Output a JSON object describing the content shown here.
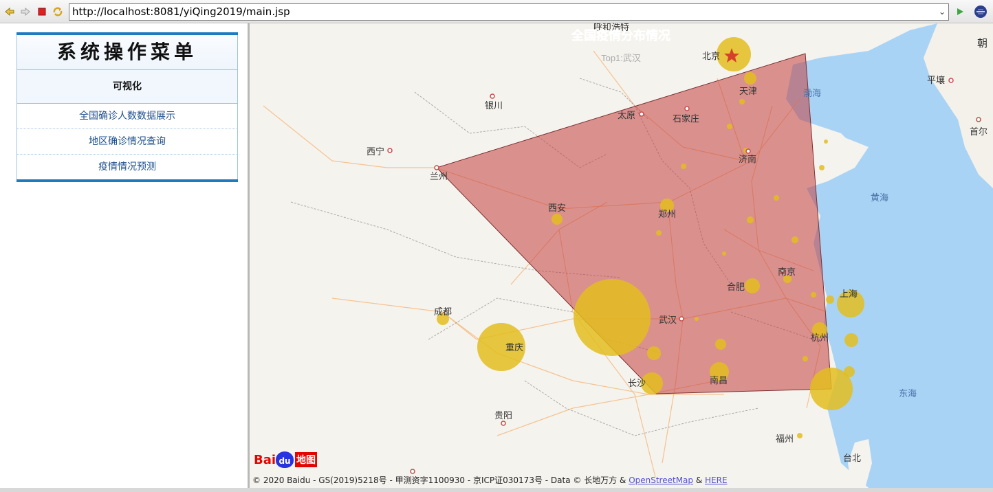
{
  "browser": {
    "url": "http://localhost:8081/yiQing2019/main.jsp"
  },
  "menu": {
    "title": "系统操作菜单",
    "section": "可视化",
    "items": [
      "全国确诊人数数据展示",
      "地区确诊情况查询",
      "疫情情况预测"
    ]
  },
  "map": {
    "chart_title": "全国疫情分布情况",
    "subtitle": "Top1:武汉",
    "city_labels": {
      "hohhot": "呼和浩特",
      "beijing": "北京",
      "tianjin": "天津",
      "bohai": "渤海",
      "yinchuan": "银川",
      "taiyuan": "太原",
      "shijiazhuang": "石家庄",
      "xining": "西宁",
      "jinan": "济南",
      "lanzhou": "兰州",
      "xian": "西安",
      "zhengzhou": "郑州",
      "huanghai": "黄海",
      "nanjing": "南京",
      "hefei": "合肥",
      "shanghai": "上海",
      "chengdu": "成都",
      "wuhan": "武汉",
      "hangzhou": "杭州",
      "chongqing": "重庆",
      "changsha": "长沙",
      "nanchang": "南昌",
      "donghai": "东海",
      "guiyang": "贵阳",
      "fuzhou": "福州",
      "taipei": "台北",
      "pyongyang": "平壤",
      "seoul": "首尔",
      "korea": "朝"
    },
    "baidu_logo": {
      "left": "Bai",
      "mid": "du",
      "right": "地图"
    },
    "copyright_text": "© 2020 Baidu - GS(2019)5218号 - 甲测资字1100930 - 京ICP证030173号 - Data © 长地万方 & ",
    "copyright_link1": "OpenStreetMap",
    "copyright_amp": " & ",
    "copyright_link2": "HERE",
    "colors": {
      "bubble": "#e3bd1f",
      "polygon": "#c24040",
      "sea": "#a9d3f5",
      "land": "#f5f3ee"
    }
  }
}
